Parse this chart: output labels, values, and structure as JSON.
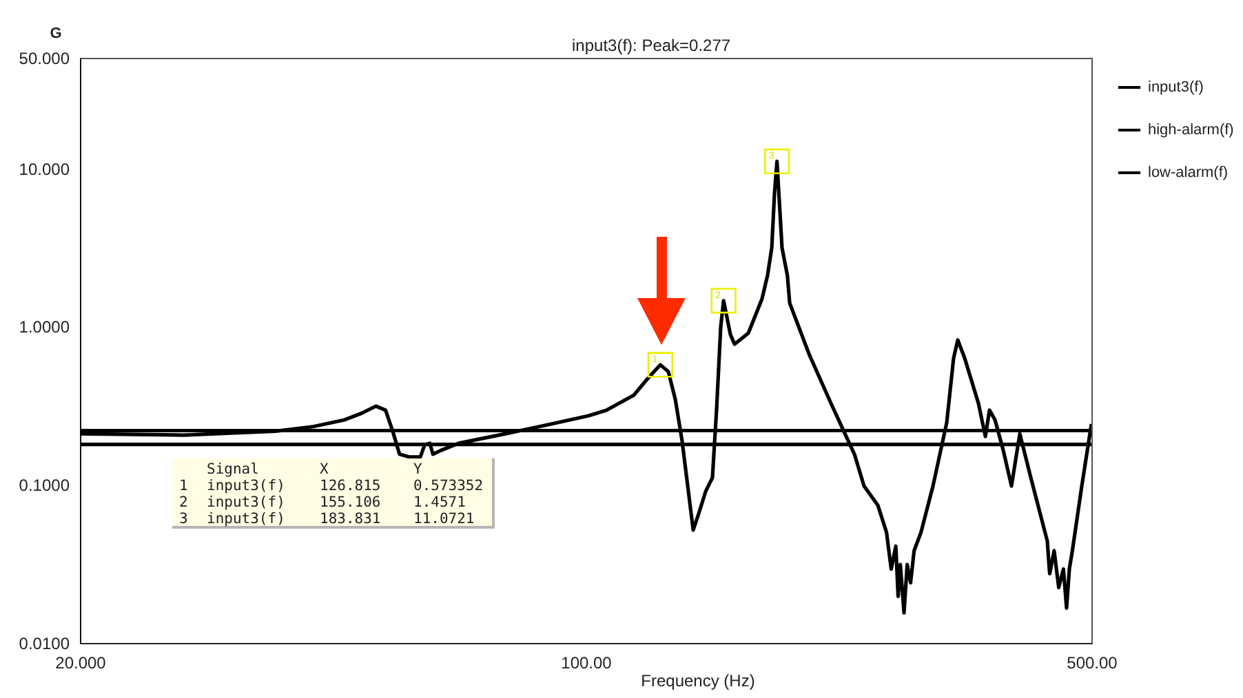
{
  "chart_data": {
    "type": "line",
    "title": "input3(f): Peak=0.277",
    "xlabel": "Frequency (Hz)",
    "ylabel": "G",
    "log": "xy",
    "xlim": [
      20,
      500
    ],
    "ylim": [
      0.01,
      50
    ],
    "xticks": [
      {
        "value": 20,
        "label": "20.000"
      },
      {
        "value": 100,
        "label": "100.00"
      },
      {
        "value": 500,
        "label": "500.00"
      }
    ],
    "yticks": [
      {
        "value": 0.01,
        "label": "0.0100"
      },
      {
        "value": 0.1,
        "label": "0.1000"
      },
      {
        "value": 1,
        "label": "1.0000"
      },
      {
        "value": 10,
        "label": "10.000"
      },
      {
        "value": 50,
        "label": "50.000"
      }
    ],
    "legend": "top right",
    "series": [
      {
        "name": "input3(f)",
        "color": "#000000",
        "x": [
          20,
          27.8,
          37.3,
          42.0,
          46.4,
          49.1,
          51.3,
          52.9,
          54.1,
          55.3,
          57.0,
          59.1,
          59.9,
          60.9,
          61.5,
          63.1,
          66.8,
          77.5,
          89.6,
          100.9,
          106.8,
          116.6,
          121.8,
          126.815,
          130.1,
          133.0,
          135.9,
          138.9,
          140.8,
          143.3,
          146.5,
          149.7,
          151.7,
          153.7,
          155.106,
          158.5,
          160.6,
          167.8,
          175.3,
          178.4,
          180.8,
          182.4,
          183.831,
          186.8,
          190.0,
          191.4,
          203.5,
          218.3,
          235.2,
          242.5,
          253.4,
          260.5,
          264.4,
          268.3,
          270.3,
          272.2,
          275.4,
          278.2,
          281.2,
          284.4,
          290.7,
          302.0,
          315.5,
          322.5,
          326.8,
          334.0,
          349.0,
          356.8,
          361.5,
          367.9,
          377.7,
          387.7,
          398.1,
          412.3,
          434.5,
          437.8,
          444.1,
          450.6,
          457.4,
          462.0,
          466.1,
          470.6,
          484.9,
          500
        ],
        "values": [
          0.21,
          0.206,
          0.218,
          0.233,
          0.257,
          0.284,
          0.314,
          0.296,
          0.219,
          0.156,
          0.15,
          0.15,
          0.179,
          0.183,
          0.156,
          0.165,
          0.183,
          0.21,
          0.242,
          0.273,
          0.296,
          0.369,
          0.469,
          0.573352,
          0.519,
          0.347,
          0.19,
          0.0854,
          0.0517,
          0.0658,
          0.0907,
          0.111,
          0.302,
          1.0,
          1.4571,
          0.891,
          0.774,
          0.909,
          1.5,
          2.11,
          3.15,
          7.02,
          11.0721,
          3.15,
          2.11,
          1.41,
          0.673,
          0.327,
          0.156,
          0.0982,
          0.0742,
          0.05,
          0.0293,
          0.0409,
          0.0197,
          0.0313,
          0.0155,
          0.0313,
          0.024,
          0.0383,
          0.05,
          0.0982,
          0.247,
          0.633,
          0.822,
          0.633,
          0.327,
          0.202,
          0.296,
          0.257,
          0.165,
          0.0982,
          0.21,
          0.111,
          0.0441,
          0.0274,
          0.0383,
          0.0224,
          0.0293,
          0.0166,
          0.0293,
          0.0383,
          0.0982,
          0.242
        ]
      },
      {
        "name": "high-alarm(f)",
        "color": "#000000",
        "x": [
          20,
          500
        ],
        "values": [
          0.22,
          0.22
        ]
      },
      {
        "name": "low-alarm(f)",
        "color": "#000000",
        "x": [
          20,
          500
        ],
        "values": [
          0.18,
          0.18
        ]
      }
    ],
    "annotations": [
      "Signal",
      "X",
      "Y",
      "1",
      "input3(f)",
      "126.815",
      "0.573352",
      "2",
      "input3(f)",
      "155.106",
      "1.4571",
      "3",
      "input3(f)",
      "183.831",
      "11.0721",
      {
        "text": "1",
        "x": 126.815,
        "y": 0.573352
      },
      {
        "text": "2",
        "x": 155.106,
        "y": 1.4571
      },
      {
        "text": "3",
        "x": 183.831,
        "y": 11.0721
      }
    ]
  }
}
